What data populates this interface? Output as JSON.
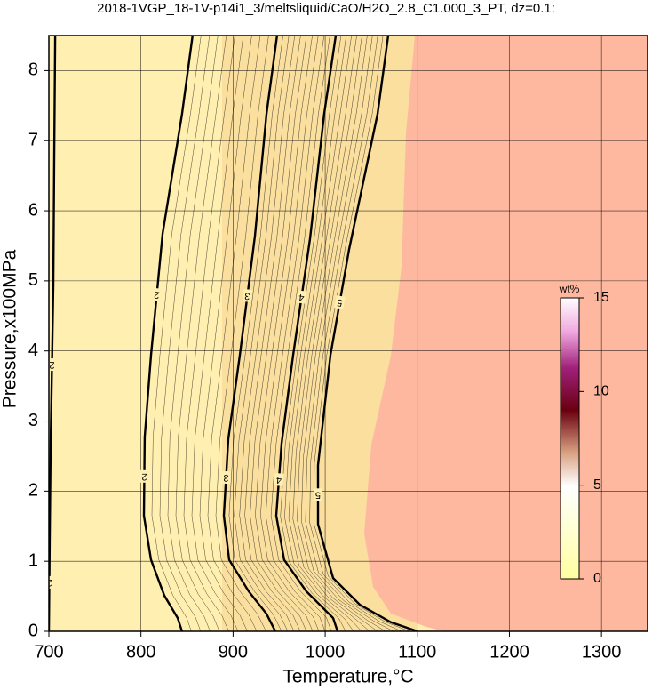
{
  "chart_data": {
    "type": "contour",
    "title": "2018-1VGP_18-1V-p14i1_3/meltsliquid/CaO/H2O_2.8_C1.000_3_PT, dz=0.1:",
    "x_label": "Temperature,°C",
    "y_label": "Pressure,x100MPa",
    "xlim": [
      700,
      1350
    ],
    "ylim": [
      0,
      8.5
    ],
    "xticks": [
      700,
      800,
      900,
      1000,
      1100,
      1200,
      1300
    ],
    "yticks": [
      0,
      1,
      2,
      3,
      4,
      5,
      6,
      7,
      8
    ],
    "grid": true,
    "contours": [
      {
        "level": 2,
        "x": [
          706.8,
          705.8,
          704.8,
          701.9,
          701,
          700
        ],
        "y": [
          8.5,
          6.74,
          4.94,
          2.67,
          1.4,
          0
        ]
      },
      {
        "level": 2,
        "x": [
          856,
          844.6,
          823.4,
          810.9,
          804.1,
          803.2,
          810.9,
          825.4,
          839.8,
          844.6
        ],
        "y": [
          8.5,
          7.38,
          5.67,
          3.94,
          2.77,
          1.65,
          1.02,
          0.51,
          0.19,
          0
        ]
      },
      {
        "level": 3,
        "x": [
          947.8,
          936.3,
          923.7,
          907.3,
          894.8,
          890,
          895.8,
          917,
          936.3,
          945.9
        ],
        "y": [
          8.5,
          7.38,
          5.64,
          3.94,
          2.74,
          1.65,
          1.02,
          0.57,
          0.25,
          0
        ]
      },
      {
        "level": 4,
        "x": [
          1011.5,
          998.9,
          983.5,
          965.2,
          952.7,
          946.9,
          955.5,
          979.6,
          1008.6,
          1013.4
        ],
        "y": [
          8.5,
          7.38,
          5.6,
          3.94,
          2.68,
          1.65,
          1.02,
          0.57,
          0.19,
          0
        ]
      },
      {
        "level": 5,
        "x": [
          1068.4,
          1056.8,
          1026,
          1005.7,
          992.2,
          992.2,
          1008.6,
          1037.5,
          1071.3,
          1100.2
        ],
        "y": [
          8.5,
          7.38,
          5.45,
          3.94,
          2.37,
          1.53,
          0.76,
          0.38,
          0.13,
          0
        ]
      }
    ],
    "colorbar": {
      "label": "wt%",
      "lim": [
        0,
        15
      ],
      "ticks": [
        0,
        5,
        10,
        15
      ]
    }
  }
}
